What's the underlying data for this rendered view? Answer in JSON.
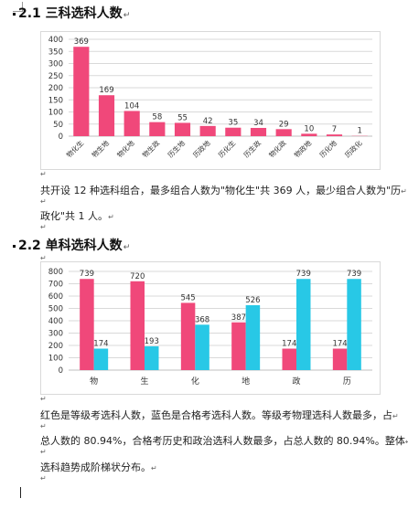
{
  "section1": {
    "heading": "2.1 三科选科人数",
    "paragraph_lines": [
      "共开设 12 种选科组合，最多组合人数为\"物化生\"共 369 人，最少组合人数为\"历",
      "政化\"共 1 人。"
    ]
  },
  "section2": {
    "heading": "2.2 单科选科人数",
    "paragraph_lines": [
      "红色是等级考选科人数，蓝色是合格考选科人数。等级考物理选科人数最多，占",
      "总人数的 80.94%，合格考历史和政治选科人数最多，占总人数的 80.94%。整体",
      "选科趋势成阶梯状分布。"
    ]
  },
  "colors": {
    "pink": "#f0487a",
    "cyan": "#28c8e6",
    "grid": "#d9d9d9",
    "axis": "#bfbfbf"
  },
  "chart_data": [
    {
      "type": "bar",
      "title": "",
      "categories": [
        "物化生",
        "物生地",
        "物化地",
        "物生政",
        "历生地",
        "历政地",
        "历化生",
        "历生政",
        "物化政",
        "物政地",
        "历化地",
        "历政化"
      ],
      "values": [
        369,
        169,
        104,
        58,
        55,
        42,
        35,
        34,
        29,
        10,
        7,
        1
      ],
      "ylim": [
        0,
        400
      ],
      "yticks": [
        0,
        50,
        100,
        150,
        200,
        250,
        300,
        350,
        400
      ],
      "grid": true
    },
    {
      "type": "bar",
      "title": "",
      "categories": [
        "物",
        "生",
        "化",
        "地",
        "政",
        "历"
      ],
      "series": [
        {
          "values": [
            739,
            720,
            545,
            387,
            174,
            174
          ]
        },
        {
          "values": [
            174,
            193,
            368,
            526,
            739,
            739
          ]
        }
      ],
      "ylim": [
        0,
        800
      ],
      "yticks": [
        0,
        100,
        200,
        300,
        400,
        500,
        600,
        700,
        800
      ],
      "grid": true
    }
  ]
}
